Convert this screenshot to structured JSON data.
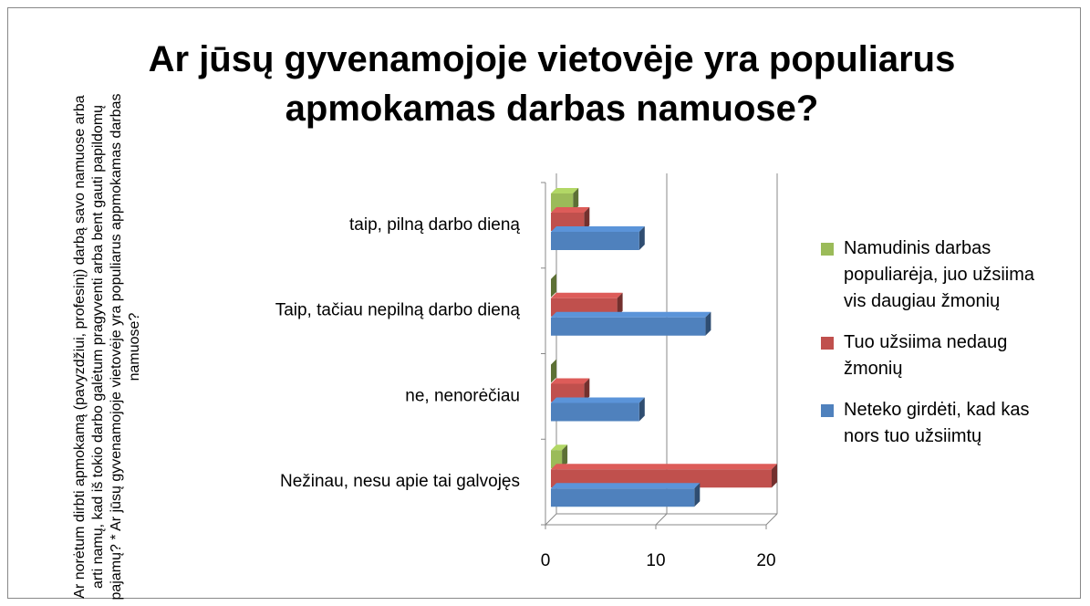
{
  "chart_data": {
    "type": "bar3d_horizontal",
    "title": "Ar jūsų gyvenamojoje vietovėje yra populiarus apmokamas darbas namuose?",
    "y_label": "Ar norėtum dirbti apmokamą (pavyzdžiui, profesinį) darbą savo namuose arba arti namų,  kad iš tokio darbo galėtum pragyventi arba bent gauti papildomų pajamų?  * Ar jūsų gyvenamojoje vietovėje yra populiarus appmokamas darbas namuose?",
    "categories": [
      "taip, pilną darbo dieną",
      "Taip,  tačiau nepilną darbo dieną",
      "ne, nenorėčiau",
      "Nežinau, nesu apie tai galvojęs"
    ],
    "series": [
      {
        "name": "Namudinis darbas populiarėja, juo užsiima vis daugiau žmonių",
        "color": "#9bbb59",
        "values": [
          2,
          0,
          0,
          1
        ]
      },
      {
        "name": "Tuo užsiima nedaug žmonių",
        "color": "#c0504d",
        "values": [
          3,
          6,
          3,
          20
        ]
      },
      {
        "name": "Neteko girdėti, kad kas nors tuo užsiimtų",
        "color": "#4f81bd",
        "values": [
          8,
          14,
          8,
          13
        ]
      }
    ],
    "xlim": [
      0,
      20
    ],
    "xticks": [
      0,
      10,
      20
    ],
    "grid": true,
    "legend": "right"
  }
}
